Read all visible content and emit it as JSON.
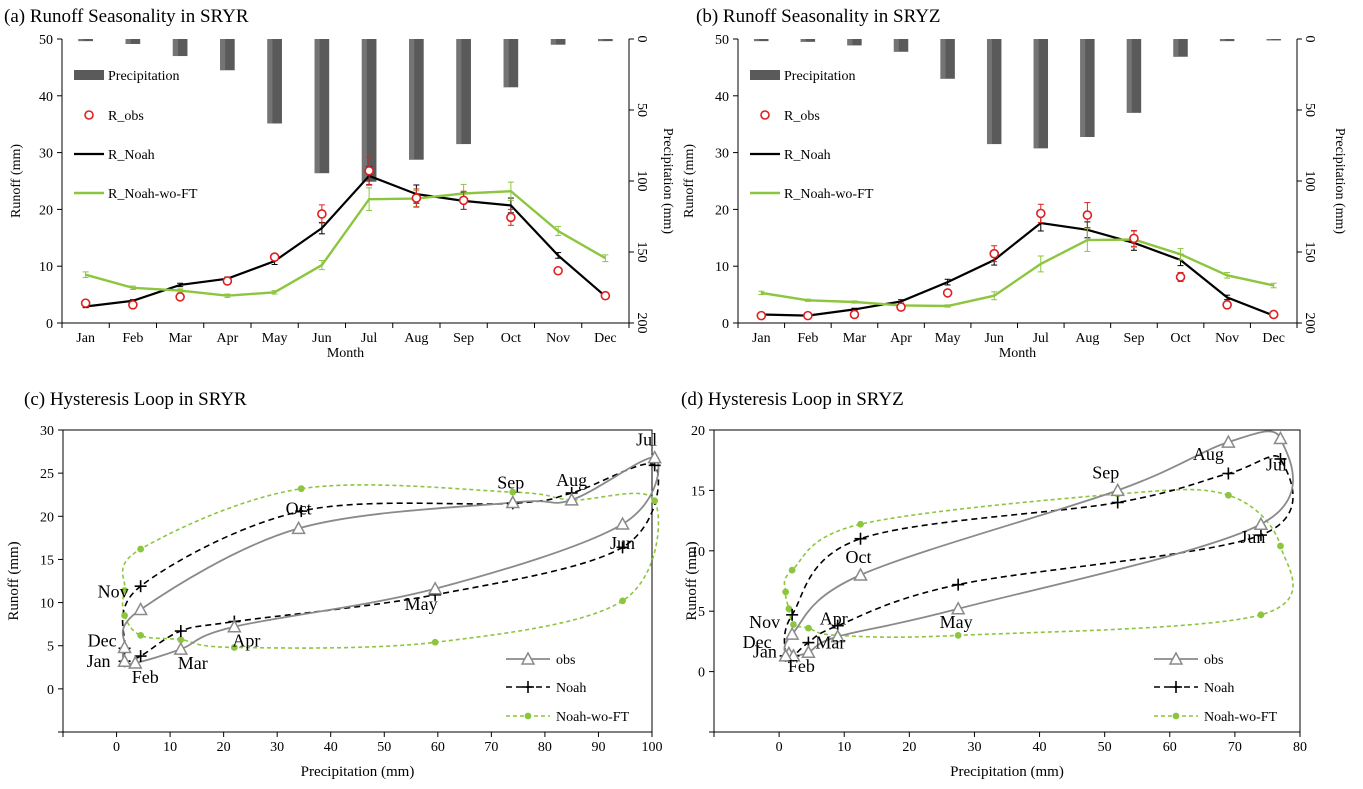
{
  "months": [
    "Jan",
    "Feb",
    "Mar",
    "Apr",
    "May",
    "Jun",
    "Jul",
    "Aug",
    "Sep",
    "Oct",
    "Nov",
    "Dec"
  ],
  "colors": {
    "precip_bar": "#5a5a5a",
    "obs_marker": "#e02020",
    "noah": "#000000",
    "noah_wo_ft": "#8cc63f",
    "obs_loop": "#8a8a8a",
    "loop_axis": "#000000"
  },
  "chart_data": [
    {
      "panel": "a",
      "type": "line",
      "title": "(a) Runoff Seasonality in SRYR",
      "xlabel": "Month",
      "ylabel": "Runoff (mm)",
      "y2label": "Precipitation (mm)",
      "ylim": [
        0,
        50
      ],
      "y2lim": [
        0,
        200
      ],
      "y2_inverted": true,
      "yticks": [
        "0",
        "10",
        "20",
        "30",
        "40",
        "50"
      ],
      "y2ticks": [
        "0",
        "50",
        "100",
        "150",
        "200"
      ],
      "legend_position": "top-left",
      "series": [
        {
          "name": "Precipitation",
          "kind": "bar",
          "axis": "right",
          "values": [
            1.5,
            3.5,
            12,
            22,
            59.5,
            94.5,
            100.5,
            85,
            74,
            34,
            4,
            1.5
          ]
        },
        {
          "name": "R_obs",
          "kind": "marker",
          "values": [
            3.5,
            3.2,
            4.6,
            7.4,
            11.6,
            19.2,
            26.8,
            22.0,
            21.6,
            18.6,
            9.2,
            4.8
          ],
          "err": [
            0.4,
            0.4,
            0.4,
            0.5,
            0.6,
            1.6,
            2.4,
            1.6,
            1.6,
            1.4,
            0.4,
            0.3
          ]
        },
        {
          "name": "R_Noah",
          "kind": "line",
          "values": [
            2.9,
            3.9,
            6.7,
            7.8,
            10.9,
            16.7,
            25.9,
            22.7,
            21.5,
            20.7,
            11.9,
            4.7
          ],
          "err": [
            0.2,
            0.2,
            0.3,
            0.3,
            0.6,
            1.0,
            1.6,
            1.6,
            1.5,
            1.3,
            0.5,
            0.3
          ]
        },
        {
          "name": "R_Noah-wo-FT",
          "kind": "line",
          "values": [
            8.5,
            6.2,
            5.7,
            4.8,
            5.4,
            10.2,
            21.8,
            21.9,
            22.8,
            23.2,
            16.2,
            11.4
          ],
          "err": [
            0.5,
            0.3,
            0.3,
            0.3,
            0.3,
            0.8,
            2.0,
            1.4,
            1.6,
            1.6,
            0.8,
            0.6
          ]
        }
      ]
    },
    {
      "panel": "b",
      "type": "line",
      "title": "(b) Runoff Seasonality in SRYZ",
      "xlabel": "Month",
      "ylabel": "Runoff (mm)",
      "y2label": "Precipitation (mm)",
      "ylim": [
        0,
        50
      ],
      "y2lim": [
        0,
        200
      ],
      "y2_inverted": true,
      "yticks": [
        "0",
        "10",
        "20",
        "30",
        "40",
        "50"
      ],
      "y2ticks": [
        "0",
        "50",
        "100",
        "150",
        "200"
      ],
      "legend_position": "top-left",
      "series": [
        {
          "name": "Precipitation",
          "kind": "bar",
          "axis": "right",
          "values": [
            1.5,
            2,
            4.5,
            9,
            28,
            74,
            77,
            69,
            52,
            12.5,
            1.5,
            1
          ]
        },
        {
          "name": "R_obs",
          "kind": "marker",
          "values": [
            1.3,
            1.3,
            1.5,
            2.8,
            5.3,
            12.2,
            19.3,
            19.0,
            14.9,
            8.1,
            3.2,
            1.5
          ],
          "err": [
            0.2,
            0.2,
            0.2,
            0.3,
            0.4,
            1.4,
            1.6,
            2.2,
            1.4,
            0.8,
            0.3,
            0.2
          ]
        },
        {
          "name": "R_Noah",
          "kind": "line",
          "values": [
            1.5,
            1.3,
            2.4,
            3.8,
            7.2,
            11.1,
            17.6,
            16.4,
            14.1,
            11.1,
            4.5,
            1.3
          ],
          "err": [
            0.2,
            0.2,
            0.2,
            0.3,
            0.5,
            0.9,
            1.4,
            1.4,
            1.3,
            1.0,
            0.4,
            0.2
          ]
        },
        {
          "name": "R_Noah-wo-FT",
          "kind": "line",
          "values": [
            5.3,
            4.0,
            3.7,
            3.1,
            3.0,
            4.8,
            10.4,
            14.6,
            14.7,
            12.1,
            8.4,
            6.6
          ],
          "err": [
            0.3,
            0.2,
            0.2,
            0.2,
            0.2,
            0.7,
            1.4,
            2.0,
            1.4,
            1.0,
            0.5,
            0.4
          ]
        }
      ]
    },
    {
      "panel": "c",
      "type": "scatter",
      "title": "(c) Hysteresis Loop in SRYR",
      "xlabel": "Precipitation (mm)",
      "ylabel": "Runoff (mm)",
      "xlim": [
        -10,
        100
      ],
      "ylim": [
        -5,
        30
      ],
      "xticks": [
        "0",
        "10",
        "20",
        "30",
        "40",
        "50",
        "60",
        "70",
        "80",
        "90",
        "100"
      ],
      "yticks": [
        "0",
        "5",
        "10",
        "15",
        "20",
        "25",
        "30"
      ],
      "legend_position": "bottom-right",
      "series": [
        {
          "name": "obs",
          "x": [
            1.5,
            3.5,
            12,
            22,
            59.5,
            94.5,
            100.5,
            85,
            74,
            34,
            4.5,
            1.5
          ],
          "y": [
            3.2,
            3.0,
            4.6,
            7.2,
            11.6,
            19.1,
            26.8,
            21.9,
            21.6,
            18.6,
            9.2,
            4.8
          ]
        },
        {
          "name": "Noah",
          "x": [
            1.5,
            4.5,
            12,
            22,
            59.5,
            94.5,
            100.5,
            85,
            74,
            34.5,
            4.5,
            1.5
          ],
          "y": [
            3.2,
            3.8,
            6.7,
            7.8,
            10.9,
            16.4,
            25.9,
            22.7,
            21.5,
            20.6,
            11.9,
            4.7
          ]
        },
        {
          "name": "Noah-wo-FT",
          "x": [
            1.5,
            4.5,
            12,
            22,
            59.5,
            94.5,
            100.5,
            85,
            74,
            34.5,
            4.5,
            1.5
          ],
          "y": [
            8.5,
            6.2,
            5.7,
            4.8,
            5.4,
            10.2,
            21.8,
            21.9,
            22.8,
            23.2,
            16.2,
            11.4
          ]
        }
      ],
      "point_labels": [
        "Jan",
        "Feb",
        "Mar",
        "Apr",
        "May",
        "Jun",
        "Jul",
        "Aug",
        "Sep",
        "Oct",
        "Nov",
        "Dec"
      ]
    },
    {
      "panel": "d",
      "type": "scatter",
      "title": "(d) Hysteresis Loop in SRYZ",
      "xlabel": "Precipitation (mm)",
      "ylabel": "Runoff (mm)",
      "xlim": [
        -10,
        80
      ],
      "ylim": [
        -5,
        20
      ],
      "xticks": [
        "0",
        "10",
        "20",
        "30",
        "40",
        "50",
        "60",
        "70",
        "80"
      ],
      "yticks": [
        "0",
        "5",
        "10",
        "15",
        "20"
      ],
      "legend_position": "bottom-right",
      "series": [
        {
          "name": "obs",
          "x": [
            1.5,
            2.2,
            4.5,
            9,
            27.5,
            74,
            77,
            69,
            52,
            12.5,
            2,
            1
          ],
          "y": [
            1.5,
            1.3,
            1.6,
            2.9,
            5.2,
            12.2,
            19.3,
            19.0,
            15.0,
            8.0,
            3.1,
            1.3
          ]
        },
        {
          "name": "Noah",
          "x": [
            1.5,
            2.2,
            4.5,
            9,
            27.5,
            74,
            77,
            69,
            52,
            12.5,
            2,
            1
          ],
          "y": [
            1.2,
            1.3,
            2.4,
            3.8,
            7.2,
            11.3,
            17.6,
            16.4,
            14.0,
            11.0,
            4.7,
            1.3
          ]
        },
        {
          "name": "Noah-wo-FT",
          "x": [
            1.5,
            2.2,
            4.5,
            9,
            27.5,
            74,
            77,
            69,
            52,
            12.5,
            2,
            1
          ],
          "y": [
            5.2,
            3.9,
            3.6,
            3.0,
            3.0,
            4.7,
            10.4,
            14.6,
            14.7,
            12.2,
            8.4,
            6.6
          ]
        }
      ],
      "point_labels": [
        "Jan",
        "Feb",
        "Mar",
        "Apr",
        "May",
        "Jun",
        "Jul",
        "Aug",
        "Sep",
        "Oct",
        "Nov",
        "Dec"
      ]
    }
  ]
}
